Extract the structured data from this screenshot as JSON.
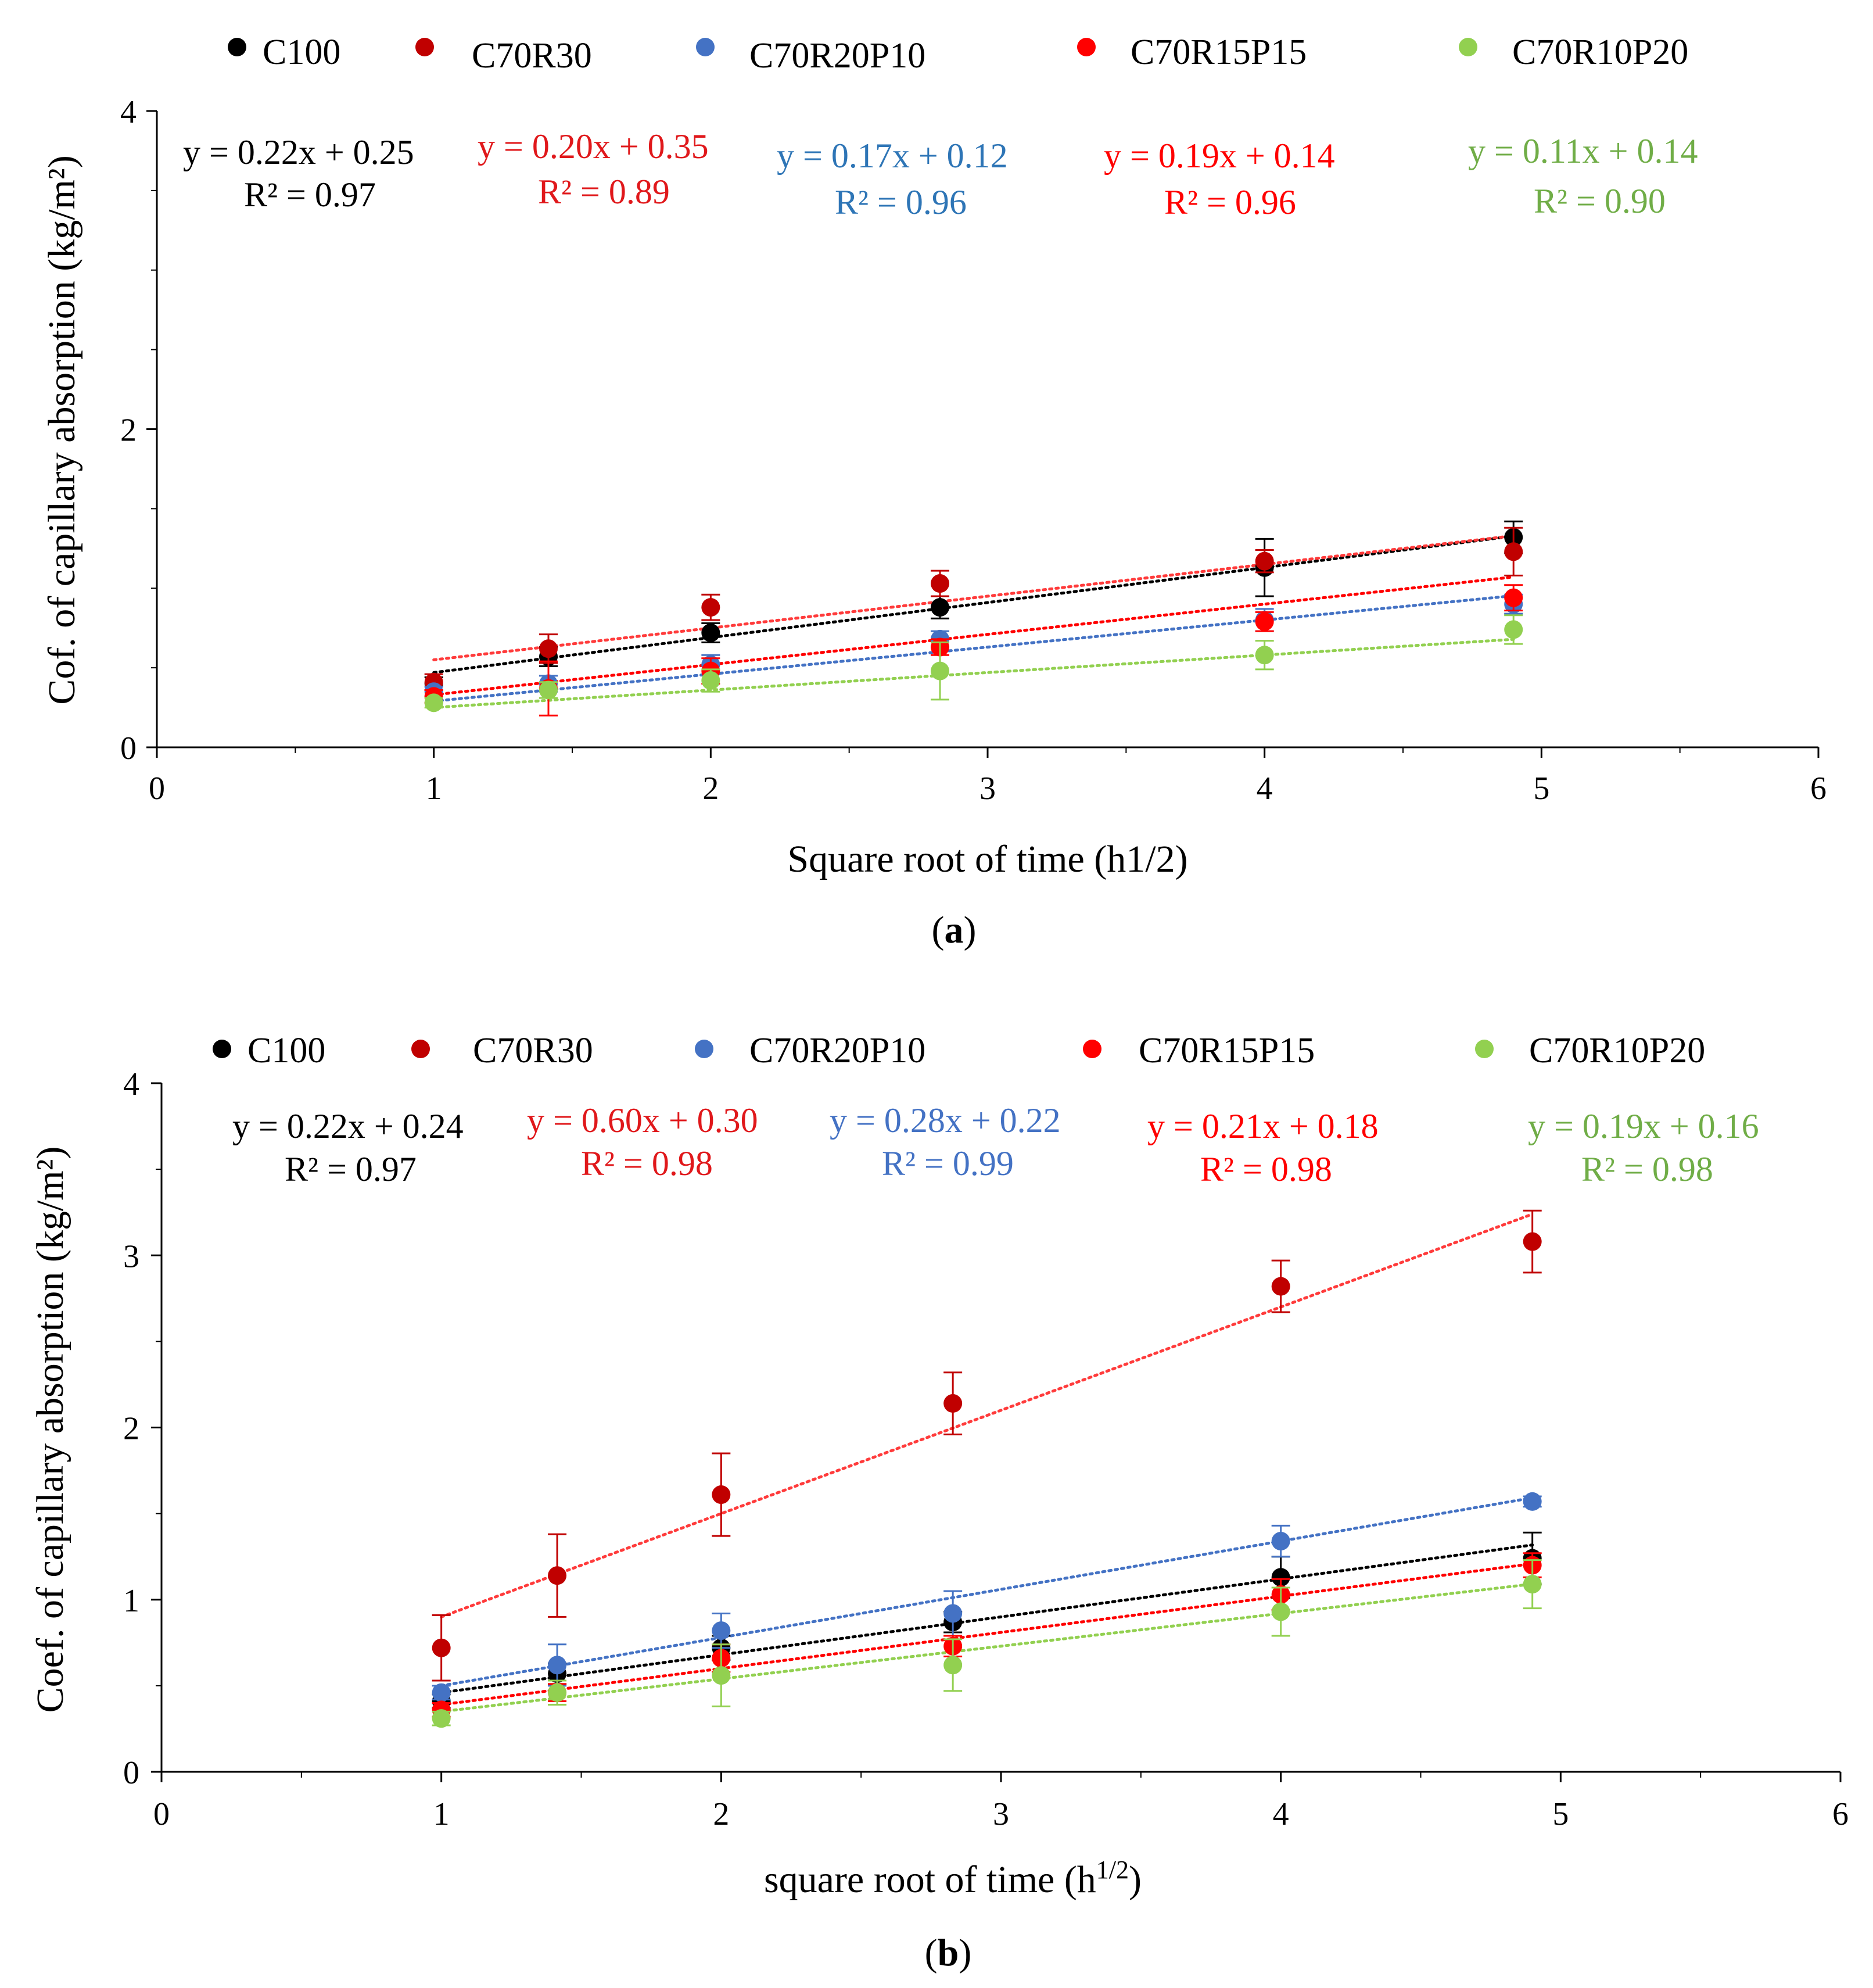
{
  "series_meta": [
    {
      "name": "C100",
      "color": "#000000",
      "eq_color": "#000000"
    },
    {
      "name": "C70R30",
      "color": "#c00000",
      "eq_color": "#e0181b"
    },
    {
      "name": "C70R20P10",
      "color": "#4472c4",
      "eq_color": "#2e75b6"
    },
    {
      "name": "C70R15P15",
      "color": "#ff0000",
      "eq_color": "#ff0000"
    },
    {
      "name": "C70R10P20",
      "color": "#92d050",
      "eq_color": "#70ad47"
    }
  ],
  "chart_data": [
    {
      "type": "scatter",
      "panel_label": "a",
      "xlabel": "Square root of time (h1/2)",
      "ylabel": "Cof. of capillary absorption (kg/m²)",
      "xlim": [
        0,
        6
      ],
      "ylim": [
        0,
        4
      ],
      "x_ticks": [
        0,
        1,
        2,
        3,
        4,
        5,
        6
      ],
      "y_ticks": [
        0,
        2,
        4
      ],
      "x": [
        1,
        1.414,
        2,
        2.828,
        4,
        4.899
      ],
      "series": [
        {
          "name": "C100",
          "values": [
            0.4,
            0.57,
            0.72,
            0.88,
            1.13,
            1.32
          ],
          "errors": [
            0.04,
            0.06,
            0.06,
            0.07,
            0.18,
            0.1
          ],
          "trendline": {
            "slope": 0.22,
            "intercept": 0.25
          },
          "equation": "y = 0.22x + 0.25",
          "r2": "R² = 0.97"
        },
        {
          "name": "C70R30",
          "values": [
            0.41,
            0.62,
            0.88,
            1.03,
            1.17,
            1.23
          ],
          "errors": [
            0.05,
            0.09,
            0.08,
            0.08,
            0.07,
            0.15
          ],
          "trendline": {
            "slope": 0.2,
            "intercept": 0.35
          },
          "equation": "y = 0.20x + 0.35",
          "r2": "R² = 0.89"
        },
        {
          "name": "C70R20P10",
          "values": [
            0.35,
            0.4,
            0.52,
            0.68,
            0.8,
            0.9
          ],
          "errors": [
            0.03,
            0.05,
            0.06,
            0.05,
            0.07,
            0.06
          ],
          "trendline": {
            "slope": 0.17,
            "intercept": 0.12
          },
          "equation": "y = 0.17x + 0.12",
          "r2": "R² = 0.96"
        },
        {
          "name": "C70R15P15",
          "values": [
            0.32,
            0.37,
            0.48,
            0.63,
            0.79,
            0.94
          ],
          "errors": [
            0.04,
            0.17,
            0.08,
            0.05,
            0.06,
            0.08
          ],
          "trendline": {
            "slope": 0.19,
            "intercept": 0.14
          },
          "equation": "y = 0.19x + 0.14",
          "r2": "R² = 0.96"
        },
        {
          "name": "C70R10P20",
          "values": [
            0.28,
            0.36,
            0.42,
            0.48,
            0.58,
            0.74
          ],
          "errors": [
            0.03,
            0.05,
            0.07,
            0.18,
            0.09,
            0.09
          ],
          "trendline": {
            "slope": 0.11,
            "intercept": 0.14
          },
          "equation": "y = 0.11x + 0.14",
          "r2": "R² = 0.90"
        }
      ]
    },
    {
      "type": "scatter",
      "panel_label": "b",
      "xlabel": "square root of time (h",
      "xlabel_sup": "1/2",
      "xlabel_end": ")",
      "ylabel": "Coef. of capillary absorption (kg/m²)",
      "xlim": [
        0,
        6
      ],
      "ylim": [
        0,
        4
      ],
      "x_ticks": [
        0,
        1,
        2,
        3,
        4,
        5,
        6
      ],
      "y_ticks": [
        0,
        1,
        2,
        3,
        4
      ],
      "x": [
        1,
        1.414,
        2,
        2.828,
        4,
        4.899
      ],
      "series": [
        {
          "name": "C100",
          "values": [
            0.41,
            0.57,
            0.72,
            0.87,
            1.13,
            1.24
          ],
          "errors": [
            0.04,
            0.06,
            0.07,
            0.06,
            0.12,
            0.15
          ],
          "trendline": {
            "slope": 0.22,
            "intercept": 0.24
          },
          "equation": "y = 0.22x + 0.24",
          "r2": "R² = 0.97"
        },
        {
          "name": "C70R30",
          "values": [
            0.72,
            1.14,
            1.61,
            2.14,
            2.82,
            3.08
          ],
          "errors": [
            0.19,
            0.24,
            0.24,
            0.18,
            0.15,
            0.18
          ],
          "trendline": {
            "slope": 0.6,
            "intercept": 0.3
          },
          "equation": "y = 0.60x + 0.30",
          "r2": "R² = 0.98"
        },
        {
          "name": "C70R20P10",
          "values": [
            0.46,
            0.62,
            0.82,
            0.92,
            1.34,
            1.57
          ],
          "errors": [
            0.04,
            0.12,
            0.1,
            0.13,
            0.09,
            0.03
          ],
          "trendline": {
            "slope": 0.28,
            "intercept": 0.22
          },
          "equation": "y = 0.28x + 0.22",
          "r2": "R² = 0.99"
        },
        {
          "name": "C70R15P15",
          "values": [
            0.36,
            0.46,
            0.66,
            0.73,
            1.03,
            1.2
          ],
          "errors": [
            0.04,
            0.05,
            0.08,
            0.06,
            0.09,
            0.07
          ],
          "trendline": {
            "slope": 0.21,
            "intercept": 0.18
          },
          "equation": "y = 0.21x + 0.18",
          "r2": "R² = 0.98"
        },
        {
          "name": "C70R10P20",
          "values": [
            0.31,
            0.46,
            0.56,
            0.62,
            0.93,
            1.09
          ],
          "errors": [
            0.04,
            0.07,
            0.18,
            0.15,
            0.14,
            0.14
          ],
          "trendline": {
            "slope": 0.19,
            "intercept": 0.16
          },
          "equation": "y = 0.19x + 0.16",
          "r2": "R² = 0.98"
        }
      ]
    }
  ]
}
